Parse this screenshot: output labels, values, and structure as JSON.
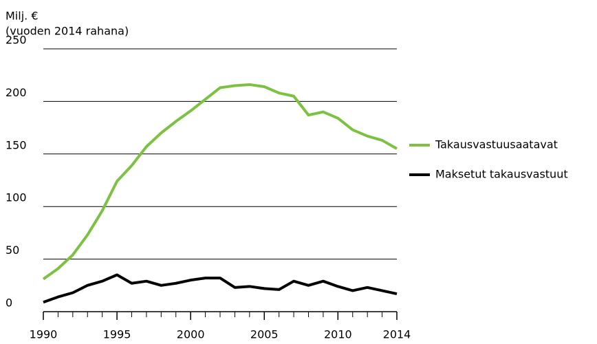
{
  "chart_data": {
    "type": "line",
    "y_label": "Milj. €",
    "y_sublabel": "(vuoden 2014 rahana)",
    "x": [
      1990,
      1991,
      1992,
      1993,
      1994,
      1995,
      1996,
      1997,
      1998,
      1999,
      2000,
      2001,
      2002,
      2003,
      2004,
      2005,
      2006,
      2007,
      2008,
      2009,
      2010,
      2011,
      2012,
      2013,
      2014
    ],
    "series": [
      {
        "name": "Takausvastuusaatavat",
        "color": "#7dc142",
        "values": [
          31,
          41,
          54,
          73,
          96,
          124,
          139,
          157,
          170,
          181,
          191,
          202,
          213,
          215,
          216,
          214,
          208,
          205,
          187,
          190,
          184,
          173,
          167,
          163,
          155
        ]
      },
      {
        "name": "Maksetut takausvastuut",
        "color": "#000000",
        "values": [
          9,
          14,
          18,
          25,
          29,
          35,
          27,
          29,
          25,
          27,
          30,
          32,
          32,
          23,
          24,
          22,
          21,
          29,
          25,
          29,
          24,
          20,
          23,
          20,
          17
        ]
      }
    ],
    "xlim": [
      1990,
      2014
    ],
    "xticks": [
      1990,
      1995,
      2000,
      2005,
      2010,
      2014
    ],
    "ylim": [
      0,
      250
    ],
    "yticks": [
      0,
      50,
      100,
      150,
      200,
      250
    ],
    "grid": true
  }
}
